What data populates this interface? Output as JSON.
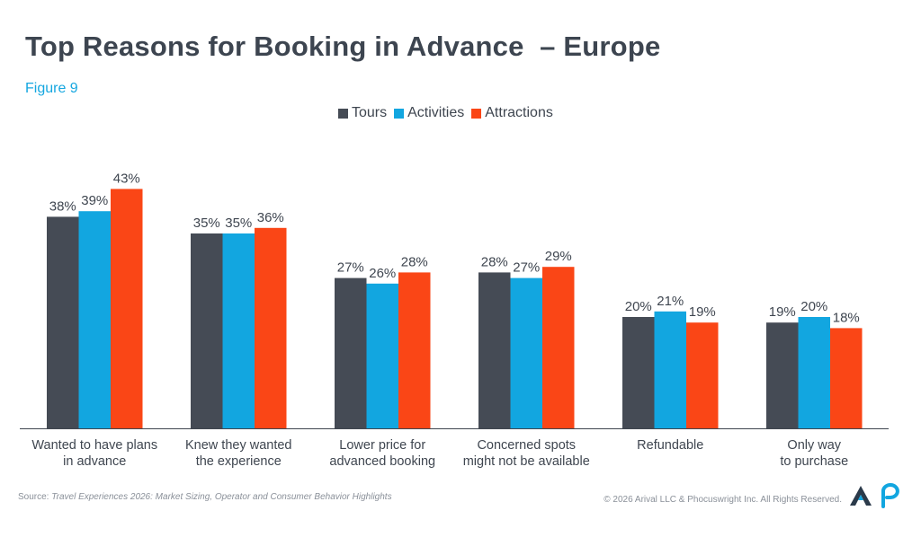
{
  "title": "Top Reasons for Booking in Advance  – Europe",
  "subtitle": "Figure 9",
  "chart_data": {
    "type": "bar",
    "categories": [
      [
        "Wanted to have plans",
        "in advance"
      ],
      [
        "Knew they wanted",
        "the experience"
      ],
      [
        "Lower price for",
        "advanced booking"
      ],
      [
        "Concerned spots",
        "might not be available"
      ],
      [
        "Refundable"
      ],
      [
        "Only way",
        "to purchase"
      ]
    ],
    "series": [
      {
        "name": "Tours",
        "color": "#454b55",
        "values": [
          38,
          35,
          27,
          28,
          20,
          19
        ]
      },
      {
        "name": "Activities",
        "color": "#12a6e0",
        "values": [
          39,
          35,
          26,
          27,
          21,
          20
        ]
      },
      {
        "name": "Attractions",
        "color": "#fa4616",
        "values": [
          43,
          36,
          28,
          29,
          19,
          18
        ]
      }
    ],
    "value_suffix": "%",
    "ylim": [
      0,
      50
    ],
    "legend_position": "top-center",
    "grid": false
  },
  "footer": {
    "source_prefix": "Source: ",
    "source_title": "Travel Experiences 2026: Market Sizing, Operator and Consumer Behavior Highlights",
    "copyright": "© 2026 Arival LLC & Phocuswright Inc. All Rights Reserved."
  },
  "logos": {
    "arival_color": "#2b3a4a",
    "arival_accent": "#12a6e0",
    "phocuswright_color": "#12a6e0"
  }
}
